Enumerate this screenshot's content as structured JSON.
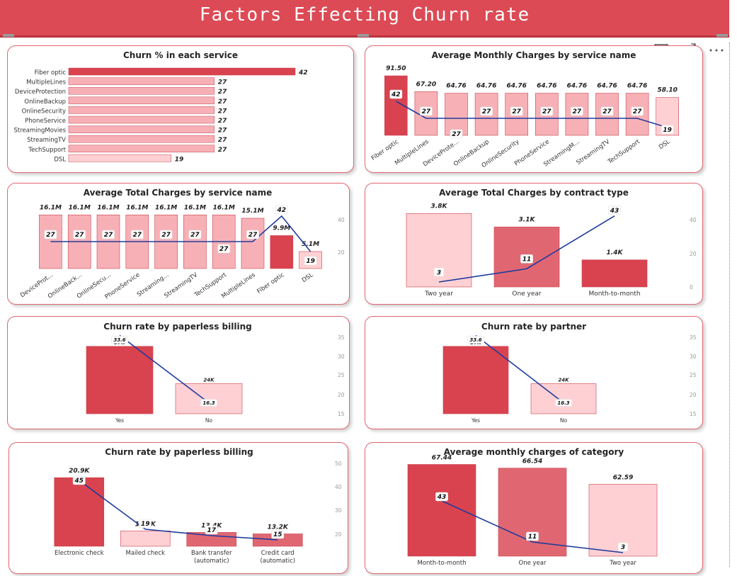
{
  "page": {
    "title": "Factors Effecting Churn rate"
  },
  "colors": {
    "dark": "#d9434f",
    "mid": "#e06772",
    "light": "#f7b1b6",
    "pale": "#ffd0d3",
    "line": "#1f3b9e",
    "title_bar": "#dc4a55"
  },
  "header_icons": {
    "filter": "filter-icon",
    "focus": "focus-mode-icon",
    "more": "more-options-icon"
  },
  "chart_data": [
    {
      "id": "churn-pct-service",
      "type": "bar",
      "orientation": "horizontal",
      "title": "Churn % in each service",
      "categories": [
        "Fiber optic",
        "MultipleLines",
        "DeviceProtection",
        "OnlineBackup",
        "OnlineSecurity",
        "PhoneService",
        "StreamingMovies",
        "StreamingTV",
        "TechSupport",
        "DSL"
      ],
      "values": [
        42,
        27,
        27,
        27,
        27,
        27,
        27,
        27,
        27,
        19
      ],
      "value_labels": [
        "42",
        "27",
        "27",
        "27",
        "27",
        "27",
        "27",
        "27",
        "27",
        "19"
      ],
      "colors": [
        "dark",
        "light",
        "light",
        "light",
        "light",
        "light",
        "light",
        "light",
        "light",
        "pale"
      ]
    },
    {
      "id": "avg-monthly-service",
      "type": "bar+line",
      "title": "Average Monthly Charges by service name",
      "categories": [
        "Fiber optic",
        "MultipleLines",
        "DeviceProte...",
        "OnlineBackup",
        "OnlineSecurity",
        "PhoneService",
        "StreamingM...",
        "StreamingTV",
        "TechSupport",
        "DSL"
      ],
      "values": [
        91.5,
        67.2,
        64.76,
        64.76,
        64.76,
        64.76,
        64.76,
        64.76,
        64.76,
        58.1
      ],
      "value_labels": [
        "91.50",
        "67.20",
        "64.76",
        "64.76",
        "64.76",
        "64.76",
        "64.76",
        "64.76",
        "64.76",
        "58.10"
      ],
      "line_values": [
        42,
        27,
        27,
        27,
        27,
        27,
        27,
        27,
        27,
        19
      ],
      "line_labels": [
        "42",
        "27",
        "27",
        "27",
        "27",
        "27",
        "27",
        "27",
        "27",
        "19"
      ],
      "colors": [
        "dark",
        "light",
        "light",
        "light",
        "light",
        "light",
        "light",
        "light",
        "light",
        "pale"
      ]
    },
    {
      "id": "avg-total-service",
      "type": "bar+line",
      "title": "Average Total Charges by service name",
      "categories": [
        "DeviceProt...",
        "OnlineBack...",
        "OnlineSecu...",
        "PhoneService",
        "Streaming...",
        "StreamingTV",
        "TechSupport",
        "MultipleLines",
        "Fiber optic",
        "DSL"
      ],
      "values": [
        16.1,
        16.1,
        16.1,
        16.1,
        16.1,
        16.1,
        16.1,
        15.1,
        9.9,
        5.1
      ],
      "value_labels": [
        "16.1M",
        "16.1M",
        "16.1M",
        "16.1M",
        "16.1M",
        "16.1M",
        "16.1M",
        "15.1M",
        "9.9M",
        "5.1M"
      ],
      "line_values": [
        27,
        27,
        27,
        27,
        27,
        27,
        27,
        27,
        42,
        19
      ],
      "line_labels": [
        "27",
        "27",
        "27",
        "27",
        "27",
        "27",
        "27",
        "27",
        "42",
        "19"
      ],
      "y2_ticks": [
        "40",
        "20"
      ],
      "colors": [
        "light",
        "light",
        "light",
        "light",
        "light",
        "light",
        "light",
        "light",
        "dark",
        "pale"
      ]
    },
    {
      "id": "avg-total-contract",
      "type": "bar+line",
      "title": "Average Total Charges by contract type",
      "categories": [
        "Two year",
        "One year",
        "Month-to-month"
      ],
      "values": [
        3.8,
        3.1,
        1.4
      ],
      "value_labels": [
        "3.8K",
        "3.1K",
        "1.4K"
      ],
      "line_values": [
        3,
        11,
        43
      ],
      "line_labels": [
        "3",
        "11",
        "43"
      ],
      "y2_ticks": [
        "40",
        "20",
        "0"
      ],
      "colors": [
        "pale",
        "mid",
        "dark"
      ]
    },
    {
      "id": "churn-paperless",
      "type": "bar+line",
      "title": "Churn rate by paperless billing",
      "categories": [
        "Yes",
        "No"
      ],
      "values": [
        37,
        24
      ],
      "value_labels": [
        "37K",
        "24K"
      ],
      "line_values": [
        33.6,
        16.3
      ],
      "line_labels": [
        "33.6",
        "16.3"
      ],
      "y2_ticks": [
        "35",
        "30",
        "25",
        "20",
        "15"
      ],
      "colors": [
        "dark",
        "pale"
      ]
    },
    {
      "id": "churn-partner",
      "type": "bar+line",
      "title": "Churn rate by partner",
      "categories": [
        "Yes",
        "No"
      ],
      "values": [
        37,
        24
      ],
      "value_labels": [
        "37K",
        "24K"
      ],
      "line_values": [
        33.6,
        16.3
      ],
      "line_labels": [
        "33.6",
        "16.3"
      ],
      "y2_ticks": [
        "35",
        "30",
        "25",
        "20",
        "15"
      ],
      "colors": [
        "dark",
        "pale"
      ]
    },
    {
      "id": "churn-payment",
      "type": "bar+line",
      "title": "Churn rate by paperless billing",
      "categories": [
        "Electronic check",
        "Mailed check",
        "Bank transfer (automatic)",
        "Credit card (automatic)"
      ],
      "category_lines": [
        [
          "Electronic check"
        ],
        [
          "Mailed check"
        ],
        [
          "Bank transfer",
          "(automatic)"
        ],
        [
          "Credit card",
          "(automatic)"
        ]
      ],
      "values": [
        20.9,
        13.6,
        13.4,
        13.2
      ],
      "value_labels": [
        "20.9K",
        "13.6K",
        "13.4K",
        "13.2K"
      ],
      "line_values": [
        45,
        19,
        17,
        15
      ],
      "line_labels": [
        "45",
        "19",
        "17",
        "15"
      ],
      "y2_ticks": [
        "50",
        "40",
        "30",
        "20"
      ],
      "colors": [
        "dark",
        "pale",
        "mid",
        "mid"
      ]
    },
    {
      "id": "avg-monthly-category",
      "type": "bar+line",
      "title": "Average monthly charges of category",
      "categories": [
        "Month-to-month",
        "One year",
        "Two year"
      ],
      "values": [
        67.44,
        66.54,
        62.59
      ],
      "value_labels": [
        "67.44",
        "66.54",
        "62.59"
      ],
      "line_values": [
        43,
        11,
        3
      ],
      "line_labels": [
        "43",
        "11",
        "3"
      ],
      "colors": [
        "dark",
        "mid",
        "pale"
      ]
    }
  ]
}
